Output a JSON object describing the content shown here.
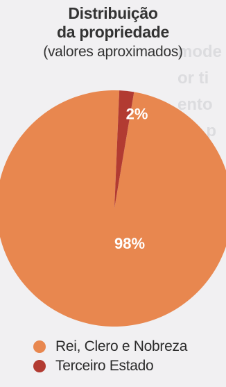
{
  "chart_data": {
    "type": "pie",
    "title_line1": "Distribuição",
    "title_line2": "da propriedade",
    "subtitle": "(valores aproximados)",
    "slices": [
      {
        "label": "Rei, Clero e Nobreza",
        "value": 98,
        "value_label": "98%",
        "color": "#e8874f"
      },
      {
        "label": "Terceiro Estado",
        "value": 2,
        "value_label": "2%",
        "color": "#b23b32"
      }
    ],
    "legend_position": "bottom"
  }
}
